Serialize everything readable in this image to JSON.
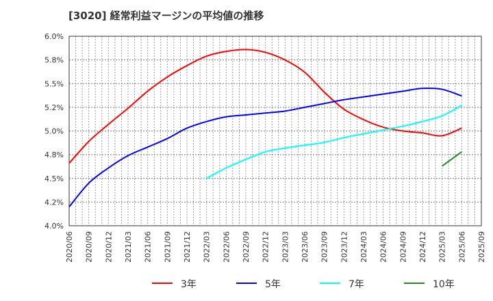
{
  "chart_data": {
    "type": "line",
    "title": "[3020]  経常利益マージンの平均値の推移",
    "xlabel": "",
    "ylabel": "",
    "x_ticks": [
      "2020/06",
      "2020/09",
      "2020/12",
      "2021/03",
      "2021/06",
      "2021/09",
      "2021/12",
      "2022/03",
      "2022/06",
      "2022/09",
      "2022/12",
      "2023/03",
      "2023/06",
      "2023/09",
      "2023/12",
      "2024/03",
      "2024/06",
      "2024/09",
      "2024/12",
      "2025/03",
      "2025/06",
      "2025/09"
    ],
    "y_ticks": [
      {
        "v": 6.0,
        "label": "6.0%"
      },
      {
        "v": 5.75,
        "label": "5.8%"
      },
      {
        "v": 5.5,
        "label": "5.5%"
      },
      {
        "v": 5.25,
        "label": "5.2%"
      },
      {
        "v": 5.0,
        "label": "5.0%"
      },
      {
        "v": 4.75,
        "label": "4.8%"
      },
      {
        "v": 4.5,
        "label": "4.5%"
      },
      {
        "v": 4.25,
        "label": "4.2%"
      },
      {
        "v": 4.0,
        "label": "4.0%"
      }
    ],
    "ylim": [
      4.0,
      6.0
    ],
    "grid": true,
    "legend_position": "bottom",
    "series": [
      {
        "name": "3年",
        "color": "#ff0000",
        "start": 0,
        "values": [
          4.66,
          4.89,
          5.07,
          5.24,
          5.42,
          5.57,
          5.69,
          5.79,
          5.84,
          5.86,
          5.83,
          5.75,
          5.62,
          5.41,
          5.23,
          5.12,
          5.04,
          5.0,
          4.98,
          4.95,
          5.03
        ]
      },
      {
        "name": "5年",
        "color": "#0000ff",
        "start": 0,
        "values": [
          4.2,
          4.45,
          4.61,
          4.74,
          4.83,
          4.92,
          5.03,
          5.1,
          5.15,
          5.17,
          5.19,
          5.21,
          5.25,
          5.29,
          5.33,
          5.36,
          5.39,
          5.42,
          5.45,
          5.44,
          5.37
        ]
      },
      {
        "name": "7年",
        "color": "#00ffff",
        "start": 7,
        "values": [
          4.5,
          4.61,
          4.7,
          4.78,
          4.82,
          4.85,
          4.88,
          4.93,
          4.97,
          5.01,
          5.05,
          5.1,
          5.16,
          5.27
        ]
      },
      {
        "name": "10年",
        "color": "#228b22",
        "start": 19,
        "values": [
          4.63,
          4.78
        ]
      }
    ]
  }
}
